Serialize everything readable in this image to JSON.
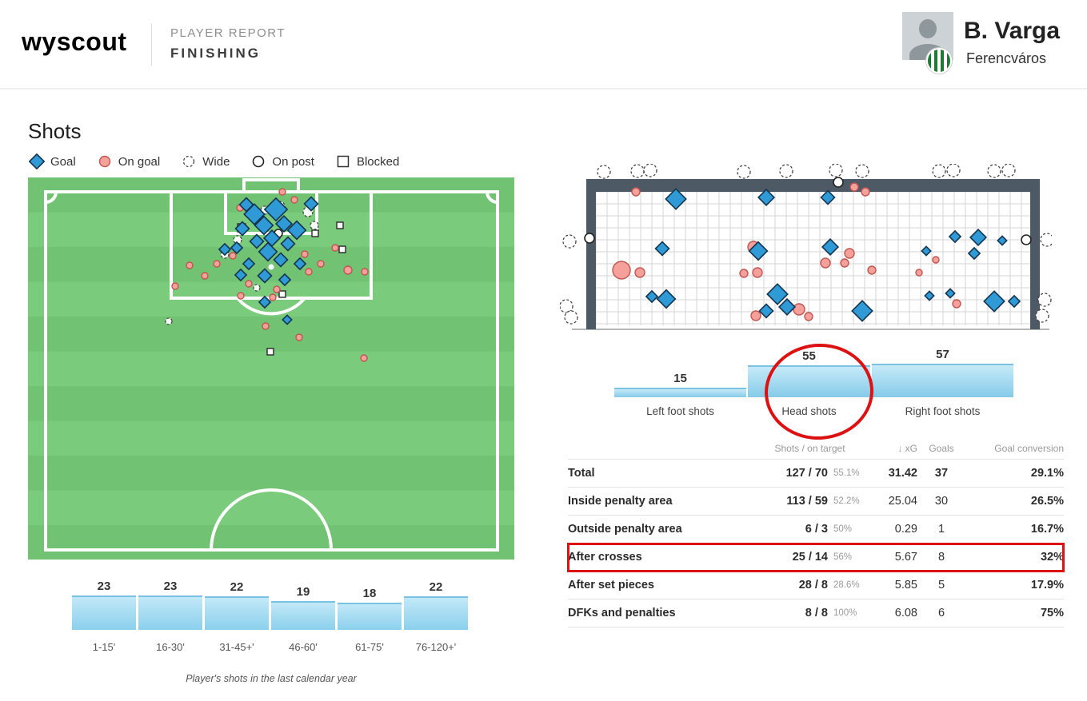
{
  "header": {
    "brand": "wyscout",
    "report_type": "PLAYER REPORT",
    "report_name": "FINISHING",
    "player": {
      "name": "B. Varga",
      "team": "Ferencváros"
    }
  },
  "shots_section": {
    "title": "Shots",
    "legend": [
      {
        "type": "goal",
        "label": "Goal"
      },
      {
        "type": "ongoal",
        "label": "On goal"
      },
      {
        "type": "wide",
        "label": "Wide"
      },
      {
        "type": "onpost",
        "label": "On post"
      },
      {
        "type": "blocked",
        "label": "Blocked"
      }
    ],
    "caption": "Player's shots in the last calendar year"
  },
  "chart_data": [
    {
      "type": "scatter",
      "name": "pitch-shot-map",
      "title": "Shot locations on pitch (attacking half)",
      "marker_types": {
        "goal": "blue diamond",
        "ongoal": "pink circle",
        "wide": "dashed circle",
        "onpost": "white circle",
        "blocked": "white square"
      },
      "points": [
        [
          283,
          46,
          9,
          "goal"
        ],
        [
          310,
          40,
          10,
          "goal"
        ],
        [
          295,
          60,
          8,
          "goal"
        ],
        [
          320,
          58,
          7,
          "goal"
        ],
        [
          268,
          64,
          6,
          "goal"
        ],
        [
          336,
          66,
          8,
          "goal"
        ],
        [
          305,
          76,
          7,
          "goal"
        ],
        [
          286,
          80,
          6,
          "goal"
        ],
        [
          325,
          83,
          6,
          "goal"
        ],
        [
          261,
          88,
          5,
          "goal"
        ],
        [
          300,
          93,
          8,
          "goal"
        ],
        [
          316,
          103,
          6,
          "goal"
        ],
        [
          276,
          108,
          5,
          "goal"
        ],
        [
          340,
          108,
          5,
          "goal"
        ],
        [
          296,
          123,
          6,
          "goal"
        ],
        [
          266,
          122,
          5,
          "goal"
        ],
        [
          321,
          128,
          5,
          "goal"
        ],
        [
          296,
          156,
          5,
          "goal"
        ],
        [
          324,
          178,
          4,
          "goal"
        ],
        [
          354,
          33,
          6,
          "goal"
        ],
        [
          273,
          34,
          6,
          "goal"
        ],
        [
          246,
          90,
          5,
          "goal"
        ],
        [
          256,
          98,
          4,
          "ongoal"
        ],
        [
          236,
          108,
          4,
          "ongoal"
        ],
        [
          202,
          110,
          4,
          "ongoal"
        ],
        [
          221,
          123,
          4,
          "ongoal"
        ],
        [
          276,
          133,
          4,
          "ongoal"
        ],
        [
          311,
          140,
          4,
          "ongoal"
        ],
        [
          351,
          118,
          4,
          "ongoal"
        ],
        [
          366,
          108,
          4,
          "ongoal"
        ],
        [
          400,
          116,
          5,
          "ongoal"
        ],
        [
          421,
          118,
          4,
          "ongoal"
        ],
        [
          384,
          88,
          4,
          "ongoal"
        ],
        [
          346,
          96,
          4,
          "ongoal"
        ],
        [
          266,
          148,
          4,
          "ongoal"
        ],
        [
          306,
          150,
          4,
          "ongoal"
        ],
        [
          184,
          136,
          4,
          "ongoal"
        ],
        [
          297,
          186,
          4,
          "ongoal"
        ],
        [
          339,
          200,
          4,
          "ongoal"
        ],
        [
          420,
          226,
          4,
          "ongoal"
        ],
        [
          265,
          38,
          4,
          "ongoal"
        ],
        [
          318,
          18,
          4,
          "ongoal"
        ],
        [
          333,
          28,
          4,
          "ongoal"
        ],
        [
          315,
          36,
          6,
          "wide"
        ],
        [
          350,
          43,
          6,
          "wide"
        ],
        [
          296,
          41,
          5,
          "wide"
        ],
        [
          262,
          78,
          5,
          "wide"
        ],
        [
          246,
          96,
          5,
          "wide"
        ],
        [
          286,
          138,
          4,
          "wide"
        ],
        [
          176,
          180,
          4,
          "wide"
        ],
        [
          358,
          60,
          5,
          "wide"
        ],
        [
          313,
          70,
          5,
          "onpost"
        ],
        [
          267,
          63,
          5,
          "blocked"
        ],
        [
          393,
          90,
          4,
          "blocked"
        ],
        [
          318,
          146,
          4,
          "blocked"
        ],
        [
          303,
          218,
          4,
          "blocked"
        ],
        [
          359,
          70,
          4,
          "blocked"
        ],
        [
          390,
          60,
          4,
          "blocked"
        ]
      ]
    },
    {
      "type": "scatter",
      "name": "goal-mouth-map",
      "title": "Shot placement in goal mouth",
      "points": [
        [
          55,
          10,
          8,
          "wide"
        ],
        [
          97,
          9,
          8,
          "wide"
        ],
        [
          113,
          8,
          8,
          "wide"
        ],
        [
          230,
          10,
          8,
          "wide"
        ],
        [
          283,
          9,
          8,
          "wide"
        ],
        [
          345,
          8,
          8,
          "wide"
        ],
        [
          378,
          9,
          8,
          "wide"
        ],
        [
          474,
          9,
          8,
          "wide"
        ],
        [
          492,
          8,
          8,
          "wide"
        ],
        [
          543,
          9,
          8,
          "wide"
        ],
        [
          561,
          8,
          8,
          "wide"
        ],
        [
          12,
          97,
          8,
          "wide"
        ],
        [
          8,
          178,
          8,
          "wide"
        ],
        [
          14,
          192,
          8,
          "wide"
        ],
        [
          606,
          170,
          8,
          "wide"
        ],
        [
          603,
          190,
          8,
          "wide"
        ],
        [
          609,
          95,
          8,
          "wide"
        ],
        [
          37,
          93,
          6,
          "onpost"
        ],
        [
          583,
          95,
          6,
          "onpost"
        ],
        [
          348,
          23,
          6,
          "onpost"
        ],
        [
          77,
          133,
          11,
          "ongoal"
        ],
        [
          100,
          136,
          6,
          "ongoal"
        ],
        [
          95,
          35,
          5,
          "ongoal"
        ],
        [
          242,
          104,
          7,
          "ongoal"
        ],
        [
          230,
          137,
          5,
          "ongoal"
        ],
        [
          247,
          136,
          6,
          "ongoal"
        ],
        [
          332,
          124,
          6,
          "ongoal"
        ],
        [
          356,
          124,
          5,
          "ongoal"
        ],
        [
          362,
          112,
          6,
          "ongoal"
        ],
        [
          368,
          29,
          5,
          "ongoal"
        ],
        [
          382,
          35,
          5,
          "ongoal"
        ],
        [
          245,
          190,
          6,
          "ongoal"
        ],
        [
          299,
          182,
          7,
          "ongoal"
        ],
        [
          311,
          191,
          5,
          "ongoal"
        ],
        [
          390,
          133,
          5,
          "ongoal"
        ],
        [
          449,
          136,
          4,
          "ongoal"
        ],
        [
          470,
          120,
          4,
          "ongoal"
        ],
        [
          496,
          175,
          5,
          "ongoal"
        ],
        [
          145,
          44,
          9,
          "goal"
        ],
        [
          258,
          42,
          7,
          "goal"
        ],
        [
          335,
          42,
          6,
          "goal"
        ],
        [
          128,
          106,
          6,
          "goal"
        ],
        [
          248,
          109,
          8,
          "goal"
        ],
        [
          338,
          104,
          7,
          "goal"
        ],
        [
          458,
          109,
          4,
          "goal"
        ],
        [
          494,
          91,
          5,
          "goal"
        ],
        [
          523,
          92,
          7,
          "goal"
        ],
        [
          553,
          96,
          4,
          "goal"
        ],
        [
          518,
          112,
          5,
          "goal"
        ],
        [
          462,
          165,
          4,
          "goal"
        ],
        [
          488,
          162,
          4,
          "goal"
        ],
        [
          115,
          166,
          5,
          "goal"
        ],
        [
          133,
          169,
          8,
          "goal"
        ],
        [
          272,
          163,
          9,
          "goal"
        ],
        [
          284,
          179,
          7,
          "goal"
        ],
        [
          258,
          184,
          6,
          "goal"
        ],
        [
          378,
          184,
          9,
          "goal"
        ],
        [
          543,
          172,
          9,
          "goal"
        ],
        [
          568,
          172,
          5,
          "goal"
        ]
      ]
    },
    {
      "type": "bar",
      "name": "shots-by-period",
      "categories": [
        "1-15'",
        "16-30'",
        "31-45+'",
        "46-60'",
        "61-75'",
        "76-120+'"
      ],
      "values": [
        23,
        23,
        22,
        19,
        18,
        22
      ]
    },
    {
      "type": "bar",
      "name": "shots-by-body-part",
      "categories": [
        "Left foot shots",
        "Head shots",
        "Right foot shots"
      ],
      "values": [
        15,
        55,
        57
      ],
      "annotation": {
        "shape": "circle",
        "target": "Head shots",
        "color": "#dd1111"
      }
    },
    {
      "type": "table",
      "name": "shots-table",
      "columns": [
        "Shots / on target",
        "↓ xG",
        "Goals",
        "Goal conversion"
      ],
      "highlighted_row": "After crosses",
      "rows": [
        {
          "label": "Total",
          "shots": "127 / 70",
          "on_target_pct": "55.1%",
          "xg": "31.42",
          "goals": "37",
          "conversion": "29.1%",
          "bold": true
        },
        {
          "label": "Inside penalty area",
          "shots": "113 / 59",
          "on_target_pct": "52.2%",
          "xg": "25.04",
          "goals": "30",
          "conversion": "26.5%",
          "bold": false
        },
        {
          "label": "Outside penalty area",
          "shots": "6 / 3",
          "on_target_pct": "50%",
          "xg": "0.29",
          "goals": "1",
          "conversion": "16.7%",
          "bold": false
        },
        {
          "label": "After crosses",
          "shots": "25 / 14",
          "on_target_pct": "56%",
          "xg": "5.67",
          "goals": "8",
          "conversion": "32%",
          "bold": false
        },
        {
          "label": "After set pieces",
          "shots": "28 / 8",
          "on_target_pct": "28.6%",
          "xg": "5.85",
          "goals": "5",
          "conversion": "17.9%",
          "bold": false
        },
        {
          "label": "DFKs and penalties",
          "shots": "8 / 8",
          "on_target_pct": "100%",
          "xg": "6.08",
          "goals": "6",
          "conversion": "75%",
          "bold": false
        }
      ]
    }
  ]
}
